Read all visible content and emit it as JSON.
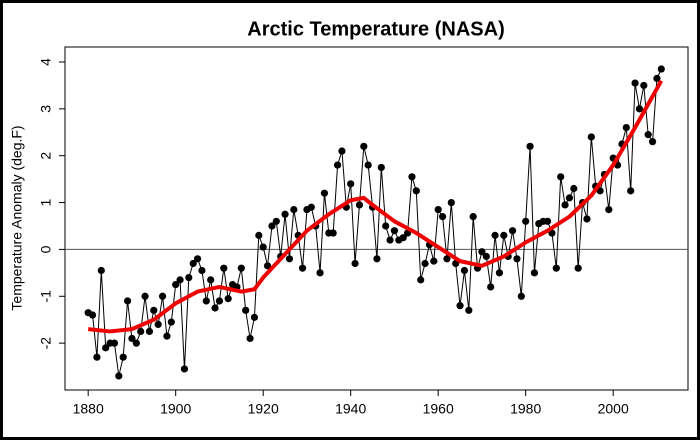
{
  "chart_data": {
    "type": "line",
    "title": "Arctic Temperature (NASA)",
    "y_label": "Temperature Anomaly (deg.F)",
    "x": [
      1880,
      1881,
      1882,
      1883,
      1884,
      1885,
      1886,
      1887,
      1888,
      1889,
      1890,
      1891,
      1892,
      1893,
      1894,
      1895,
      1896,
      1897,
      1898,
      1899,
      1900,
      1901,
      1902,
      1903,
      1904,
      1905,
      1906,
      1907,
      1908,
      1909,
      1910,
      1911,
      1912,
      1913,
      1914,
      1915,
      1916,
      1917,
      1918,
      1919,
      1920,
      1921,
      1922,
      1923,
      1924,
      1925,
      1926,
      1927,
      1928,
      1929,
      1930,
      1931,
      1932,
      1933,
      1934,
      1935,
      1936,
      1937,
      1938,
      1939,
      1940,
      1941,
      1942,
      1943,
      1944,
      1945,
      1946,
      1947,
      1948,
      1949,
      1950,
      1951,
      1952,
      1953,
      1954,
      1955,
      1956,
      1957,
      1958,
      1959,
      1960,
      1961,
      1962,
      1963,
      1964,
      1965,
      1966,
      1967,
      1968,
      1969,
      1970,
      1971,
      1972,
      1973,
      1974,
      1975,
      1976,
      1977,
      1978,
      1979,
      1980,
      1981,
      1982,
      1983,
      1984,
      1985,
      1986,
      1987,
      1988,
      1989,
      1990,
      1991,
      1992,
      1993,
      1994,
      1995,
      1996,
      1997,
      1998,
      1999,
      2000,
      2001,
      2002,
      2003,
      2004,
      2005,
      2006,
      2007,
      2008,
      2009,
      2010,
      2011
    ],
    "series": [
      {
        "color": "#000000",
        "marker": "circle",
        "line_width": 1,
        "values": [
          -1.35,
          -1.4,
          -2.3,
          -0.45,
          -2.1,
          -2.0,
          -2.0,
          -2.7,
          -2.3,
          -1.1,
          -1.9,
          -2.0,
          -1.75,
          -1.0,
          -1.75,
          -1.3,
          -1.6,
          -1.0,
          -1.85,
          -1.55,
          -0.75,
          -0.65,
          -2.55,
          -0.6,
          -0.3,
          -0.2,
          -0.45,
          -1.1,
          -0.65,
          -1.25,
          -1.1,
          -0.4,
          -1.05,
          -0.75,
          -0.8,
          -0.4,
          -1.3,
          -1.9,
          -1.45,
          0.3,
          0.05,
          -0.35,
          0.5,
          0.6,
          -0.15,
          0.75,
          -0.2,
          0.85,
          0.3,
          -0.4,
          0.85,
          0.9,
          0.5,
          -0.5,
          1.2,
          0.35,
          0.35,
          1.8,
          2.1,
          0.9,
          1.4,
          -0.3,
          0.95,
          2.2,
          1.8,
          0.9,
          -0.2,
          1.75,
          0.5,
          0.2,
          0.4,
          0.2,
          0.25,
          0.35,
          1.55,
          1.25,
          -0.65,
          -0.3,
          0.1,
          -0.25,
          0.85,
          0.7,
          -0.2,
          1.0,
          -0.3,
          -1.2,
          -0.45,
          -1.3,
          0.7,
          -0.4,
          -0.05,
          -0.15,
          -0.8,
          0.3,
          -0.5,
          0.3,
          -0.15,
          0.4,
          -0.2,
          -1.0,
          0.6,
          2.2,
          -0.5,
          0.55,
          0.6,
          0.6,
          0.35,
          -0.4,
          1.55,
          0.95,
          1.1,
          1.3,
          -0.4,
          1.0,
          0.65,
          2.4,
          1.35,
          1.25,
          1.6,
          0.85,
          1.95,
          1.8,
          2.25,
          2.6,
          1.25,
          3.55,
          3.0,
          3.5,
          2.45,
          2.3,
          3.65,
          3.85
        ]
      },
      {
        "color": "#ee0000",
        "line_width": 4,
        "x": [
          1880,
          1885,
          1890,
          1895,
          1900,
          1905,
          1910,
          1915,
          1918,
          1920,
          1925,
          1930,
          1935,
          1940,
          1943,
          1945,
          1950,
          1955,
          1960,
          1965,
          1970,
          1975,
          1980,
          1985,
          1990,
          1995,
          2000,
          2005,
          2011
        ],
        "values": [
          -1.7,
          -1.75,
          -1.7,
          -1.5,
          -1.15,
          -0.9,
          -0.8,
          -0.9,
          -0.85,
          -0.6,
          -0.1,
          0.4,
          0.75,
          1.05,
          1.1,
          0.95,
          0.6,
          0.35,
          0.05,
          -0.25,
          -0.35,
          -0.15,
          0.15,
          0.4,
          0.7,
          1.15,
          1.8,
          2.6,
          3.6
        ]
      }
    ],
    "hline": 0,
    "xlim": [
      1874.7,
      2017.1
    ],
    "ylim": [
      -3.0,
      4.32
    ],
    "xticks": [
      1880,
      1900,
      1920,
      1940,
      1960,
      1980,
      2000
    ],
    "yticks": [
      -2,
      -1,
      0,
      1,
      2,
      3,
      4
    ]
  }
}
